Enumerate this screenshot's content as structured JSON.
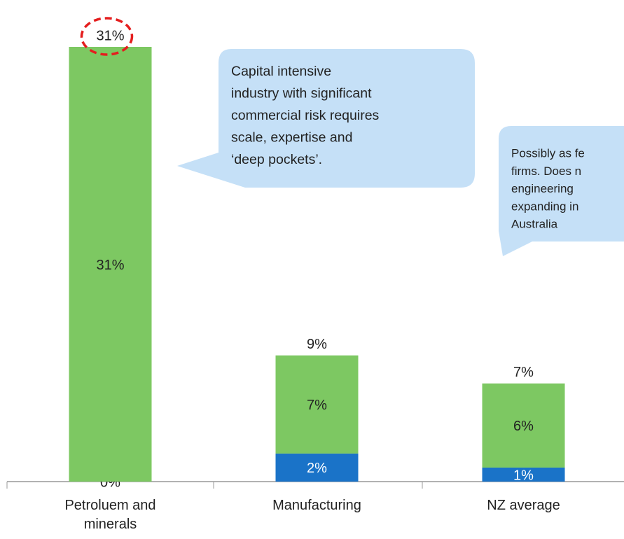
{
  "chart_data": {
    "type": "stacked_bar",
    "categories": [
      "Petroluem and minerals",
      "Manufacturing",
      "NZ average"
    ],
    "series": [
      {
        "color": "#1a73c8",
        "values": [
          0,
          2,
          1
        ],
        "value_labels": [
          "0%",
          "2%",
          "1%"
        ]
      },
      {
        "color": "#7dc862",
        "values": [
          31,
          7,
          6
        ],
        "value_labels": [
          "31%",
          "7%",
          "6%"
        ]
      }
    ],
    "totals": [
      31,
      9,
      7
    ],
    "total_labels": [
      "31%",
      "9%",
      "7%"
    ],
    "ylim": [
      0,
      31
    ],
    "annotations": [
      {
        "lines": [
          "Capital  intensive",
          "industry with significant",
          "commercial risk requires",
          "scale,  expertise and",
          "‘deep pockets’."
        ]
      },
      {
        "lines": [
          "Possibly as fe",
          "firms. Does n",
          "engineering",
          "expanding in",
          "Australia"
        ]
      }
    ]
  }
}
